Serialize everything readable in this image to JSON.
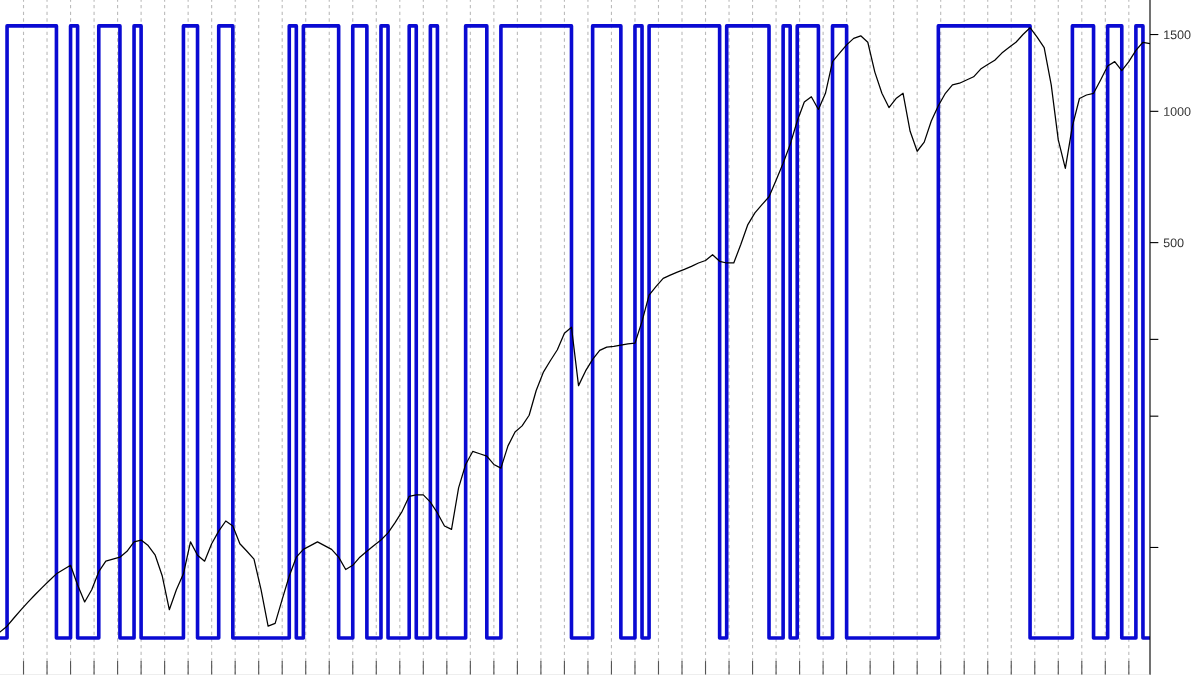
{
  "chart_data": {
    "type": "line",
    "log": "y",
    "grid": "x",
    "tick_labels": "y",
    "categories": [
      null,
      null,
      null,
      null,
      null,
      null,
      null,
      null,
      null,
      null,
      null,
      null,
      null,
      null,
      null,
      null,
      null,
      null,
      null,
      null,
      null,
      null,
      null,
      null,
      null,
      null,
      null,
      null,
      null,
      null,
      null,
      null,
      null,
      null,
      null,
      null,
      null,
      null,
      null,
      null,
      null,
      null,
      null,
      null,
      null,
      null,
      null,
      null,
      null,
      null,
      null,
      null,
      null,
      null,
      null,
      null,
      null,
      null,
      null,
      null,
      null,
      null,
      null,
      null,
      null,
      null,
      null,
      null,
      null,
      null,
      null,
      null,
      null,
      null,
      null,
      null,
      null,
      null,
      null,
      null,
      null,
      null,
      null,
      null,
      null,
      null,
      null,
      null,
      null,
      null,
      null,
      null,
      null,
      null,
      null,
      null,
      null,
      null,
      null,
      null,
      null,
      null,
      null,
      null,
      null,
      null,
      null,
      null,
      null,
      null,
      null,
      null,
      null,
      null,
      null,
      null,
      null,
      null,
      null,
      null,
      null,
      null,
      null,
      null,
      null,
      null,
      null,
      null,
      null,
      null,
      null,
      null,
      null,
      null,
      null,
      null,
      null,
      null,
      null,
      null,
      null,
      null,
      null,
      null,
      null,
      null,
      null,
      null,
      null,
      null,
      null,
      null,
      null,
      null,
      null,
      null,
      null,
      null,
      null,
      null,
      null,
      null,
      null,
      null
    ],
    "ylim": [
      51,
      1800
    ],
    "yticks": [
      {
        "value": 100,
        "label": null
      },
      {
        "value": 200,
        "label": null
      },
      {
        "value": 300,
        "label": null
      },
      500,
      1000,
      1500
    ],
    "series": [
      {
        "color": "#000000",
        "values": [
          64,
          66,
          69,
          72,
          75,
          78,
          81,
          84,
          87,
          89,
          91,
          82,
          75,
          80,
          88,
          93,
          94,
          95,
          98,
          103,
          104,
          101,
          96,
          86,
          72,
          80,
          87,
          103,
          96,
          93,
          102,
          109,
          115,
          112,
          102,
          98,
          94,
          80,
          66,
          67,
          76,
          86,
          95,
          99,
          101,
          103,
          101,
          99,
          95,
          89,
          91,
          95,
          98,
          101,
          104,
          108,
          114,
          121,
          131,
          132,
          132,
          127,
          120,
          112,
          110,
          137,
          155,
          166,
          164,
          162,
          155,
          152,
          171,
          184,
          190,
          201,
          229,
          252,
          268,
          284,
          310,
          320,
          235,
          254,
          270,
          283,
          288,
          289,
          291,
          293,
          294,
          330,
          379,
          397,
          414,
          421,
          428,
          434,
          441,
          449,
          455,
          469,
          453,
          449,
          449,
          495,
          550,
          585,
          611,
          637,
          695,
          760,
          840,
          950,
          1050,
          1080,
          1010,
          1100,
          1300,
          1360,
          1420,
          1470,
          1490,
          1440,
          1230,
          1100,
          1020,
          1070,
          1100,
          900,
          810,
          850,
          950,
          1030,
          1100,
          1150,
          1160,
          1180,
          1200,
          1250,
          1280,
          1310,
          1360,
          1400,
          1440,
          1500,
          1555,
          1480,
          1400,
          1150,
          860,
          740,
          925,
          1070,
          1090,
          1100,
          1180,
          1270,
          1300,
          1240,
          1300,
          1380,
          1440,
          1430
        ]
      },
      {
        "type": "step",
        "color": "#0a0ad2",
        "values": [
          62,
          1570,
          1570,
          1570,
          1570,
          1570,
          1570,
          1570,
          62,
          62,
          1570,
          62,
          62,
          62,
          1570,
          1570,
          1570,
          62,
          62,
          1570,
          62,
          62,
          62,
          62,
          62,
          62,
          1570,
          1570,
          62,
          62,
          62,
          1570,
          1570,
          62,
          62,
          62,
          62,
          62,
          62,
          62,
          62,
          1570,
          62,
          1570,
          1570,
          1570,
          1570,
          1570,
          62,
          62,
          1570,
          1570,
          62,
          62,
          1570,
          62,
          62,
          62,
          1570,
          62,
          62,
          1570,
          62,
          62,
          62,
          62,
          1570,
          1570,
          1570,
          62,
          62,
          1570,
          1570,
          1570,
          1570,
          1570,
          1570,
          1570,
          1570,
          1570,
          1570,
          62,
          62,
          62,
          1570,
          1570,
          1570,
          1570,
          62,
          62,
          1570,
          62,
          1570,
          1570,
          1570,
          1570,
          1570,
          1570,
          1570,
          1570,
          1570,
          1570,
          62,
          1570,
          1570,
          1570,
          1570,
          1570,
          1570,
          62,
          62,
          1570,
          62,
          1570,
          1570,
          1570,
          62,
          62,
          1570,
          1570,
          62,
          62,
          62,
          62,
          62,
          62,
          62,
          62,
          62,
          62,
          62,
          62,
          62,
          1570,
          1570,
          1570,
          1570,
          1570,
          1570,
          1570,
          1570,
          1570,
          1570,
          1570,
          1570,
          1570,
          62,
          62,
          62,
          62,
          62,
          62,
          1570,
          1570,
          1570,
          62,
          62,
          1570,
          1570,
          62,
          62,
          1570,
          62,
          62
        ]
      }
    ]
  }
}
